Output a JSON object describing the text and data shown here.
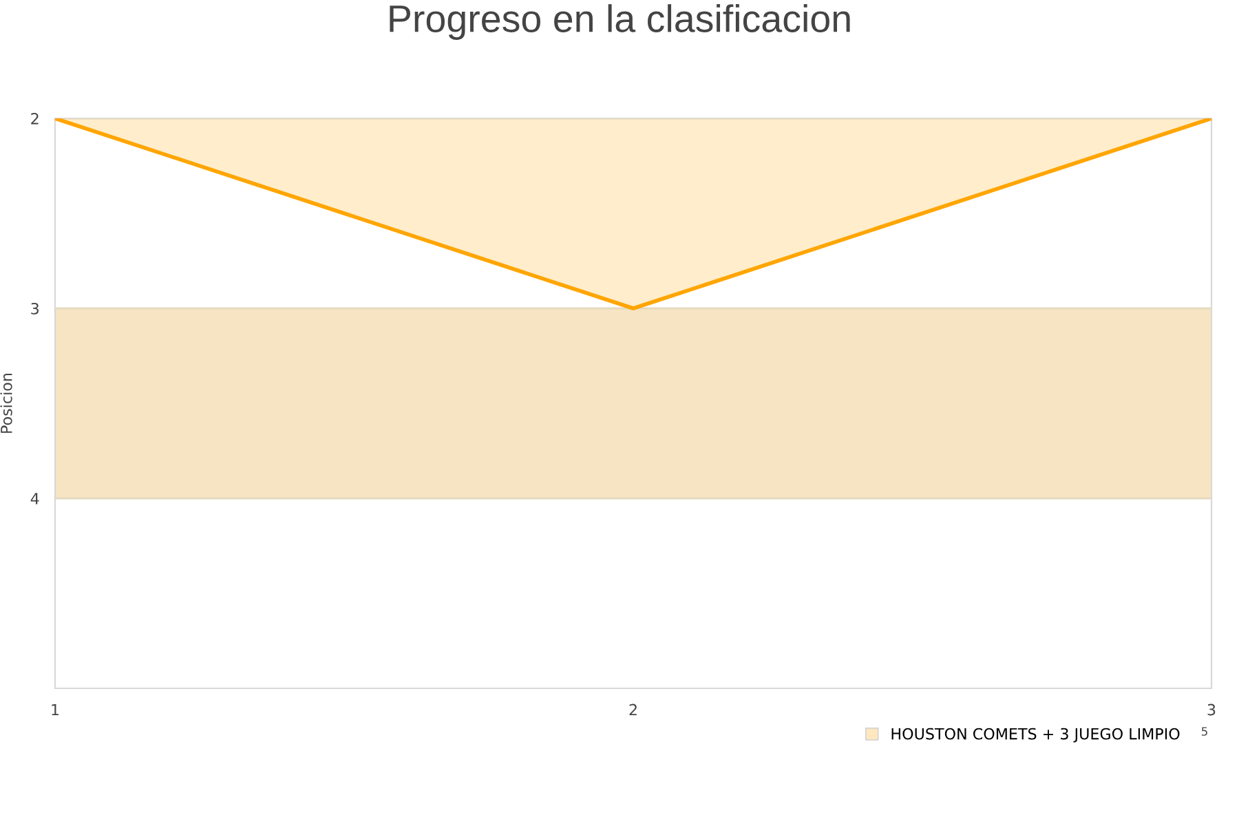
{
  "chart_data": {
    "type": "area",
    "title": "Progreso en la clasificacion",
    "ylabel": "Posicion",
    "x": [
      1,
      2,
      3
    ],
    "series": [
      {
        "name": "HOUSTON COMETS + 3 JUEGO LIMPIO",
        "color": "#ffa500",
        "values": [
          2,
          3,
          2
        ]
      }
    ],
    "xlim": [
      1,
      3
    ],
    "xticks": [
      1,
      2,
      3
    ],
    "ylim": [
      5,
      2
    ],
    "yticks": [
      2,
      3,
      4
    ],
    "bands": [
      {
        "axis": "y",
        "from": 3,
        "to": 4,
        "color": "#f6e4c3"
      }
    ],
    "grid": "y",
    "legend": "bottom right",
    "annotations": [
      "5"
    ]
  }
}
